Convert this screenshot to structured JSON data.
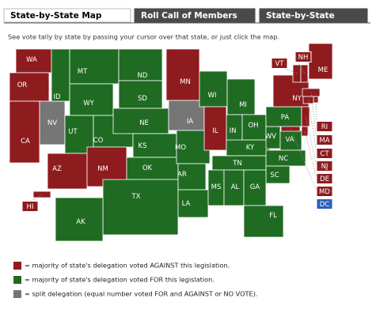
{
  "tabs": [
    {
      "text": "State-by-State Map",
      "selected": true
    },
    {
      "text": "Roll Call of Members",
      "selected": false
    },
    {
      "text": "State-by-State",
      "selected": false
    }
  ],
  "instructions": "See vote tally by state by passing your cursor over that state, or just click the map.",
  "states": [
    {
      "label": "WA",
      "color": "#8e1b1e"
    },
    {
      "label": "OR",
      "color": "#8e1b1e"
    },
    {
      "label": "CA",
      "color": "#8e1b1e"
    },
    {
      "label": "NV",
      "color": "#767676"
    },
    {
      "label": "ID",
      "color": "#1f6b22"
    },
    {
      "label": "MT",
      "color": "#1f6b22"
    },
    {
      "label": "WY",
      "color": "#1f6b22"
    },
    {
      "label": "UT",
      "color": "#1f6b22"
    },
    {
      "label": "CO",
      "color": "#1f6b22"
    },
    {
      "label": "AZ",
      "color": "#8e1b1e"
    },
    {
      "label": "NM",
      "color": "#8e1b1e"
    },
    {
      "label": "ND",
      "color": "#1f6b22"
    },
    {
      "label": "SD",
      "color": "#1f6b22"
    },
    {
      "label": "NE",
      "color": "#1f6b22"
    },
    {
      "label": "KS",
      "color": "#1f6b22"
    },
    {
      "label": "OK",
      "color": "#1f6b22"
    },
    {
      "label": "TX",
      "color": "#1f6b22"
    },
    {
      "label": "MN",
      "color": "#8e1b1e"
    },
    {
      "label": "IA",
      "color": "#767676"
    },
    {
      "label": "MO",
      "color": "#1f6b22"
    },
    {
      "label": "AR",
      "color": "#1f6b22"
    },
    {
      "label": "LA",
      "color": "#1f6b22"
    },
    {
      "label": "WI",
      "color": "#1f6b22"
    },
    {
      "label": "IL",
      "color": "#8e1b1e"
    },
    {
      "label": "MI",
      "color": "#1f6b22"
    },
    {
      "label": "IN",
      "color": "#1f6b22"
    },
    {
      "label": "OH",
      "color": "#1f6b22"
    },
    {
      "label": "KY",
      "color": "#1f6b22"
    },
    {
      "label": "WV",
      "color": "#1f6b22"
    },
    {
      "label": "VA",
      "color": "#1f6b22"
    },
    {
      "label": "TN",
      "color": "#1f6b22"
    },
    {
      "label": "NC",
      "color": "#1f6b22"
    },
    {
      "label": "SC",
      "color": "#1f6b22"
    },
    {
      "label": "MS",
      "color": "#1f6b22"
    },
    {
      "label": "AL",
      "color": "#1f6b22"
    },
    {
      "label": "GA",
      "color": "#1f6b22"
    },
    {
      "label": "FL",
      "color": "#1f6b22"
    },
    {
      "label": "PA",
      "color": "#1f6b22"
    },
    {
      "label": "NY",
      "color": "#8e1b1e"
    },
    {
      "label": "ME",
      "color": "#8e1b1e"
    },
    {
      "label": "VT",
      "color": "#8e1b1e"
    },
    {
      "label": "NH",
      "color": "#8e1b1e"
    },
    {
      "label": "RI",
      "color": "#8e1b1e"
    },
    {
      "label": "MA",
      "color": "#8e1b1e"
    },
    {
      "label": "CT",
      "color": "#8e1b1e"
    },
    {
      "label": "NJ",
      "color": "#8e1b1e"
    },
    {
      "label": "DE",
      "color": "#8e1b1e"
    },
    {
      "label": "MD",
      "color": "#8e1b1e"
    },
    {
      "label": "DC",
      "color": "#2b5fb8"
    },
    {
      "label": "AK",
      "color": "#1f6b22"
    },
    {
      "label": "HI",
      "color": "#8e1b1e"
    }
  ],
  "legend": [
    {
      "color": "#8e1b1e",
      "text": "= majority of state's delegation voted AGAINST this legislation."
    },
    {
      "color": "#1f6b22",
      "text": "= majority of state's delegation voted FOR this legislation."
    },
    {
      "color": "#767676",
      "text": "= split delegation (equal number voted FOR and AGAINST or NO VOTE)."
    }
  ]
}
